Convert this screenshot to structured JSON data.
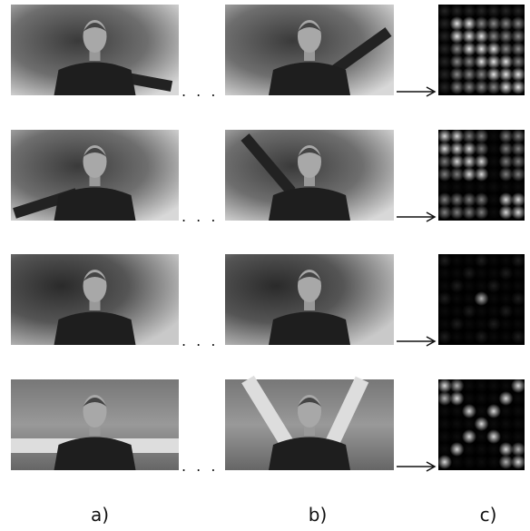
{
  "figure": {
    "panel_labels": [
      "a)",
      "b)",
      "c)"
    ],
    "ellipsis": ". . ."
  }
}
